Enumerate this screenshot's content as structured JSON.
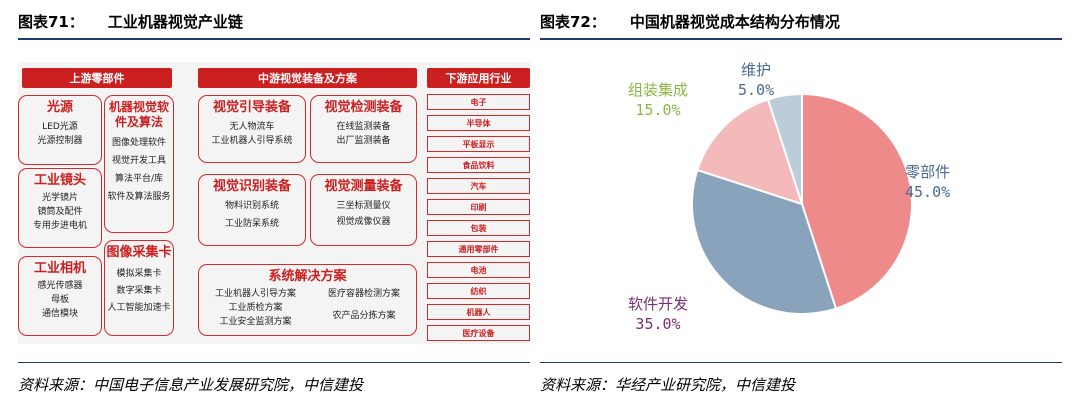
{
  "left": {
    "fig_label": "图表71：",
    "title": "工业机器视觉产业链",
    "source": "资料来源：中国电子信息产业发展研究院，中信建投",
    "columns": [
      "上游零部件",
      "中游视觉装备及方案",
      "下游应用行业"
    ],
    "upstream": [
      {
        "title": "光源",
        "items": [
          "LED光源",
          "光源控制器"
        ]
      },
      {
        "title": "工业镜头",
        "items": [
          "光学镜片",
          "镜筒及配件",
          "专用步进电机"
        ]
      },
      {
        "title": "工业相机",
        "items": [
          "感光传感器",
          "母板",
          "通信模块"
        ]
      },
      {
        "title": "机器视觉软件及算法",
        "items": [
          "图像处理软件",
          "视觉开发工具",
          "算法平台/库",
          "软件及算法服务"
        ]
      },
      {
        "title": "图像采集卡",
        "items": [
          "模拟采集卡",
          "数字采集卡",
          "人工智能加速卡"
        ]
      }
    ],
    "midstream": [
      {
        "title": "视觉引导装备",
        "items": [
          "无人物流车",
          "工业机器人引导系统"
        ]
      },
      {
        "title": "视觉检测装备",
        "items": [
          "在线监测装备",
          "出厂监测装备"
        ]
      },
      {
        "title": "视觉识别装备",
        "items": [
          "物料识别系统",
          "工业防呆系统"
        ]
      },
      {
        "title": "视觉测量装备",
        "items": [
          "三坐标测量仪",
          "视觉成像仪器"
        ]
      }
    ],
    "solutions": {
      "title": "系统解决方案",
      "items_left": [
        "工业机器人引导方案",
        "工业质检方案",
        "工业安全监测方案"
      ],
      "items_right": [
        "医疗容器检测方案",
        "农产品分拣方案"
      ]
    },
    "downstream": [
      "电子",
      "半导体",
      "平板显示",
      "食品饮料",
      "汽车",
      "印刷",
      "包装",
      "通用零部件",
      "电池",
      "纺织",
      "机器人",
      "医疗设备"
    ]
  },
  "right": {
    "fig_label": "图表72：",
    "title": "中国机器视觉成本结构分布情况",
    "source": "资料来源：华经产业研究院，中信建投"
  },
  "chart_data": {
    "type": "pie",
    "title": "中国机器视觉成本结构分布情况",
    "categories": [
      "零部件",
      "软件开发",
      "组装集成",
      "维护"
    ],
    "values": [
      45.0,
      35.0,
      15.0,
      5.0
    ],
    "value_labels": [
      "45.0%",
      "35.0%",
      "15.0%",
      "5.0%"
    ],
    "colors": [
      "#ef8a8a",
      "#8aa3bd",
      "#f3b9bb",
      "#bcccd9"
    ],
    "label_colors": [
      "#4a6a93",
      "#7a2f74",
      "#8cb84a",
      "#4a6a93"
    ]
  }
}
